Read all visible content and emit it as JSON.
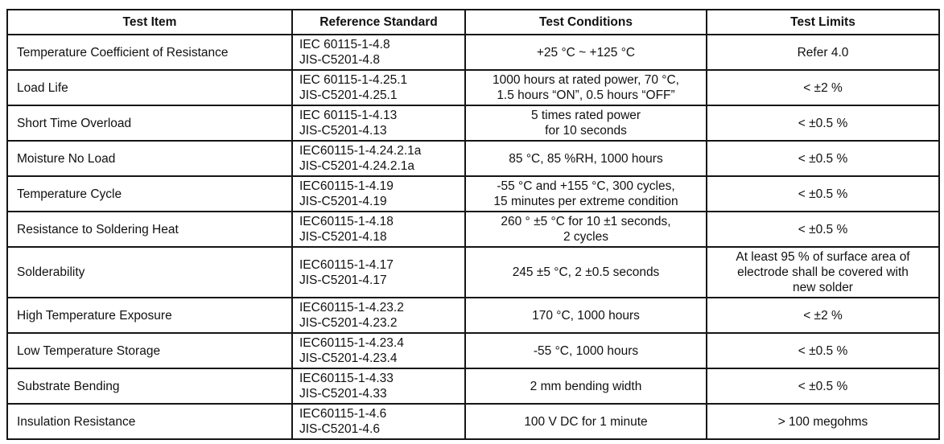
{
  "table": {
    "headers": [
      "Test Item",
      "Reference Standard",
      "Test Conditions",
      "Test Limits"
    ],
    "rows": [
      {
        "item": "Temperature Coefficient of Resistance",
        "standards": [
          "IEC 60115-1-4.8",
          "JIS-C5201-4.8"
        ],
        "conditions": [
          "+25 °C ~ +125 °C"
        ],
        "limits": [
          "Refer 4.0"
        ]
      },
      {
        "item": "Load Life",
        "standards": [
          "IEC 60115-1-4.25.1",
          "JIS-C5201-4.25.1"
        ],
        "conditions": [
          "1000 hours at rated power, 70 °C,",
          "1.5 hours “ON”, 0.5 hours “OFF”"
        ],
        "limits": [
          "< ±2 %"
        ]
      },
      {
        "item": "Short Time Overload",
        "standards": [
          "IEC 60115-1-4.13",
          "JIS-C5201-4.13"
        ],
        "conditions": [
          "5 times rated power",
          "for 10 seconds"
        ],
        "limits": [
          "< ±0.5 %"
        ]
      },
      {
        "item": "Moisture No Load",
        "standards": [
          "IEC60115-1-4.24.2.1a",
          "JIS-C5201-4.24.2.1a"
        ],
        "conditions": [
          "85 °C, 85 %RH, 1000 hours"
        ],
        "limits": [
          "< ±0.5 %"
        ]
      },
      {
        "item": "Temperature Cycle",
        "standards": [
          "IEC60115-1-4.19",
          "JIS-C5201-4.19"
        ],
        "conditions": [
          "-55 °C and +155 °C, 300 cycles,",
          "15 minutes per extreme condition"
        ],
        "limits": [
          "< ±0.5 %"
        ]
      },
      {
        "item": "Resistance to Soldering Heat",
        "standards": [
          "IEC60115-1-4.18",
          "JIS-C5201-4.18"
        ],
        "conditions": [
          "260 ° ±5 °C for 10 ±1 seconds,",
          "2 cycles"
        ],
        "limits": [
          "< ±0.5 %"
        ]
      },
      {
        "item": "Solderability",
        "standards": [
          "IEC60115-1-4.17",
          "JIS-C5201-4.17"
        ],
        "conditions": [
          "245 ±5 °C, 2 ±0.5 seconds"
        ],
        "limits": [
          "At least 95 % of surface area of",
          "electrode shall be covered with",
          "new solder"
        ]
      },
      {
        "item": "High Temperature Exposure",
        "standards": [
          "IEC60115-1-4.23.2",
          "JIS-C5201-4.23.2"
        ],
        "conditions": [
          "170 °C, 1000 hours"
        ],
        "limits": [
          "< ±2 %"
        ]
      },
      {
        "item": "Low Temperature Storage",
        "standards": [
          "IEC60115-1-4.23.4",
          "JIS-C5201-4.23.4"
        ],
        "conditions": [
          "-55 °C, 1000 hours"
        ],
        "limits": [
          "< ±0.5 %"
        ]
      },
      {
        "item": "Substrate Bending",
        "standards": [
          "IEC60115-1-4.33",
          "JIS-C5201-4.33"
        ],
        "conditions": [
          "2 mm bending width"
        ],
        "limits": [
          "< ±0.5 %"
        ]
      },
      {
        "item": "Insulation Resistance",
        "standards": [
          "IEC60115-1-4.6",
          "JIS-C5201-4.6"
        ],
        "conditions": [
          "100 V DC for 1 minute"
        ],
        "limits": [
          "> 100 megohms"
        ]
      }
    ]
  }
}
